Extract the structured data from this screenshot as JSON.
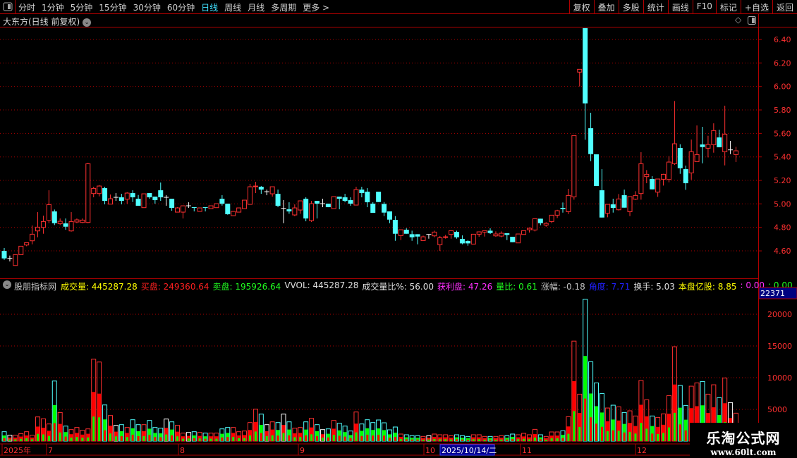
{
  "toolbar": {
    "tabs": [
      "分时",
      "1分钟",
      "5分钟",
      "15分钟",
      "30分钟",
      "60分钟",
      "日线",
      "周线",
      "月线",
      "多周期",
      "更多 >"
    ],
    "active": "日线",
    "right_buttons": [
      "复权",
      "叠加",
      "多股",
      "统计",
      "画线",
      "F10",
      "标记",
      "+自选",
      "返回"
    ]
  },
  "chart_title": "大东方(日线 前复权)",
  "indicator": {
    "name": "股朋指标网",
    "items": [
      {
        "label": "成交量",
        "value": "445287.28",
        "color": "#ffff00"
      },
      {
        "label": "买盘",
        "value": "249360.64",
        "color": "#ff2020"
      },
      {
        "label": "卖盘",
        "value": "195926.64",
        "color": "#20ff20"
      },
      {
        "label": "VVOL",
        "value": "445287.28",
        "color": "#e0e0e0"
      },
      {
        "label": "成交量比%",
        "value": "56.00",
        "color": "#e0e0e0"
      },
      {
        "label": "获利盘",
        "value": "47.26",
        "color": "#ff30ff"
      },
      {
        "label": "量比",
        "value": "0.61",
        "color": "#20ff20"
      },
      {
        "label": "涨幅",
        "value": "-0.18",
        "color": "#c0c0c0"
      },
      {
        "label": "角度",
        "value": "7.71",
        "color": "#2020ff"
      },
      {
        "label": "换手",
        "value": "5.03",
        "color": "#e0e0e0"
      },
      {
        "label": "本盘亿股",
        "value": "8.85",
        "color": "#ffff00"
      },
      {
        "label": "",
        "value": "0.00",
        "color": "#ff30ff"
      },
      {
        "label": "",
        "value": "0.00",
        "color": "#20ff20"
      }
    ]
  },
  "watermark": {
    "name": "乐淘公式网",
    "url": "www.60lt.com"
  },
  "colors": {
    "up": "#ff3030",
    "down": "#50ffff",
    "flat": "#ffffff",
    "grid": "#b00000",
    "buy": "#ff0000",
    "sell": "#00ff00"
  },
  "chart_data": [
    {
      "type": "candlestick",
      "yticks": [
        "6.40",
        "6.20",
        "6.00",
        "5.80",
        "5.60",
        "5.40",
        "5.20",
        "5.00",
        "4.80",
        "4.60"
      ],
      "grid": true,
      "x_labels": [
        "2025年",
        "7",
        "8",
        "9",
        "10",
        "11",
        "12"
      ],
      "cursor_date": "2025/10/14/二",
      "ohlc": [
        [
          4.6,
          4.624,
          4.524,
          4.536
        ],
        [
          4.536,
          4.56,
          4.51,
          4.536
        ],
        [
          4.476,
          4.568,
          4.476,
          4.568
        ],
        [
          4.568,
          4.64,
          4.568,
          4.64
        ],
        [
          4.65,
          4.67,
          4.64,
          4.67
        ],
        [
          4.686,
          4.816,
          4.656,
          4.742
        ],
        [
          4.77,
          4.93,
          4.716,
          4.802
        ],
        [
          4.8,
          4.9,
          4.746,
          4.85
        ],
        [
          4.86,
          5.116,
          4.836,
          4.994
        ],
        [
          4.936,
          4.952,
          4.82,
          4.836
        ],
        [
          4.832,
          4.876,
          4.82,
          4.852
        ],
        [
          4.834,
          4.876,
          4.78,
          4.806
        ],
        [
          4.77,
          4.93,
          4.764,
          4.85
        ],
        [
          4.846,
          4.876,
          4.836,
          4.864
        ],
        [
          4.842,
          4.876,
          4.836,
          4.862
        ],
        [
          4.842,
          5.35,
          4.836,
          5.342
        ],
        [
          5.088,
          5.146,
          5.056,
          5.132
        ],
        [
          5.088,
          5.16,
          5.064,
          5.152
        ],
        [
          5.134,
          5.146,
          4.996,
          5.026
        ],
        [
          4.998,
          5.08,
          4.998,
          5.044
        ],
        [
          5.056,
          5.092,
          5.026,
          5.056
        ],
        [
          5.056,
          5.086,
          4.996,
          5.026
        ],
        [
          5.04,
          5.1,
          5.0,
          5.092
        ],
        [
          5.092,
          5.116,
          5.016,
          5.056
        ],
        [
          5.044,
          5.076,
          4.984,
          4.984
        ],
        [
          4.968,
          5.086,
          4.968,
          5.086
        ],
        [
          5.092,
          5.092,
          5.044,
          5.056
        ],
        [
          5.062,
          5.062,
          5.002,
          5.032
        ],
        [
          5.116,
          5.182,
          5.026,
          5.056
        ],
        [
          5.056,
          5.074,
          4.984,
          5.056
        ],
        [
          5.044,
          5.044,
          4.942,
          4.966
        ],
        [
          4.93,
          4.972,
          4.93,
          4.966
        ],
        [
          4.93,
          4.984,
          4.876,
          4.984
        ],
        [
          4.984,
          5.014,
          4.966,
          4.984
        ],
        [
          4.972,
          4.972,
          4.936,
          4.968
        ],
        [
          4.936,
          4.966,
          4.936,
          4.966
        ],
        [
          4.972,
          4.972,
          4.936,
          4.968
        ],
        [
          4.96,
          4.984,
          4.96,
          4.984
        ],
        [
          4.968,
          5.002,
          4.968,
          5.002
        ],
        [
          5.044,
          5.074,
          4.986,
          5.002
        ],
        [
          5.002,
          5.002,
          4.908,
          4.912
        ],
        [
          4.9,
          4.936,
          4.9,
          4.936
        ],
        [
          4.93,
          4.966,
          4.93,
          4.966
        ],
        [
          4.96,
          5.032,
          4.96,
          5.032
        ],
        [
          4.996,
          5.17,
          4.996,
          5.146
        ],
        [
          5.148,
          5.188,
          5.092,
          5.152
        ],
        [
          5.146,
          5.152,
          5.086,
          5.122
        ],
        [
          5.104,
          5.122,
          5.074,
          5.104
        ],
        [
          5.086,
          5.146,
          5.062,
          5.146
        ],
        [
          5.086,
          5.122,
          4.972,
          4.984
        ],
        [
          4.962,
          5.032,
          4.836,
          4.962
        ],
        [
          4.954,
          5.014,
          4.916,
          4.936
        ],
        [
          4.906,
          4.996,
          4.896,
          4.966
        ],
        [
          4.948,
          5.026,
          4.916,
          5.026
        ],
        [
          5.044,
          5.056,
          4.852,
          4.876
        ],
        [
          4.858,
          5.026,
          4.846,
          5.002
        ],
        [
          5.026,
          5.026,
          4.876,
          5.002
        ],
        [
          5.002,
          5.044,
          4.972,
          5.002
        ],
        [
          5.002,
          5.002,
          4.972,
          4.972
        ],
        [
          4.96,
          5.062,
          4.96,
          5.062
        ],
        [
          5.062,
          5.062,
          4.954,
          5.044
        ],
        [
          5.056,
          5.086,
          5.014,
          5.026
        ],
        [
          5.032,
          5.056,
          4.984,
          5.002
        ],
        [
          4.99,
          5.146,
          4.99,
          5.122
        ],
        [
          5.122,
          5.146,
          5.056,
          5.092
        ],
        [
          5.104,
          5.134,
          4.972,
          5.014
        ],
        [
          5.002,
          5.014,
          4.924,
          4.924
        ],
        [
          5.104,
          5.104,
          5.016,
          5.016
        ],
        [
          5.0,
          5.016,
          4.896,
          4.926
        ],
        [
          4.936,
          4.936,
          4.836,
          4.866
        ],
        [
          4.864,
          4.896,
          4.686,
          4.746
        ],
        [
          4.73,
          4.78,
          4.692,
          4.78
        ],
        [
          4.78,
          4.792,
          4.746,
          4.746
        ],
        [
          4.742,
          4.772,
          4.686,
          4.716
        ],
        [
          4.742,
          4.742,
          4.656,
          4.722
        ],
        [
          4.688,
          4.73,
          4.688,
          4.72
        ],
        [
          4.74,
          4.74,
          4.704,
          4.74
        ],
        [
          4.728,
          4.772,
          4.716,
          4.76
        ],
        [
          4.652,
          4.726,
          4.6,
          4.712
        ],
        [
          4.714,
          4.736,
          4.704,
          4.72
        ],
        [
          4.74,
          4.772,
          4.704,
          4.772
        ],
        [
          4.762,
          4.772,
          4.704,
          4.716
        ],
        [
          4.702,
          4.732,
          4.656,
          4.664
        ],
        [
          4.684,
          4.692,
          4.644,
          4.664
        ],
        [
          4.658,
          4.742,
          4.658,
          4.742
        ],
        [
          4.742,
          4.766,
          4.72,
          4.762
        ],
        [
          4.76,
          4.772,
          4.722,
          4.772
        ],
        [
          4.772,
          4.792,
          4.744,
          4.752
        ],
        [
          4.728,
          4.766,
          4.72,
          4.744
        ],
        [
          4.726,
          4.766,
          4.716,
          4.75
        ],
        [
          4.75,
          4.75,
          4.692,
          4.736
        ],
        [
          4.72,
          4.72,
          4.674,
          4.674
        ],
        [
          4.668,
          4.744,
          4.668,
          4.744
        ],
        [
          4.74,
          4.772,
          4.74,
          4.772
        ],
        [
          4.78,
          4.8,
          4.756,
          4.792
        ],
        [
          4.778,
          4.874,
          4.766,
          4.874
        ],
        [
          4.874,
          4.874,
          4.818,
          4.836
        ],
        [
          4.82,
          4.844,
          4.806,
          4.834
        ],
        [
          4.85,
          4.904,
          4.836,
          4.904
        ],
        [
          4.904,
          4.95,
          4.88,
          4.942
        ],
        [
          4.966,
          5.012,
          4.926,
          4.956
        ],
        [
          4.934,
          5.128,
          4.914,
          5.072
        ],
        [
          5.06,
          5.582,
          5.036,
          5.582
        ],
        [
          6.122,
          6.146,
          6.0,
          6.146
        ],
        [
          6.496,
          6.496,
          5.546,
          5.856
        ],
        [
          5.644,
          5.776,
          5.364,
          5.424
        ],
        [
          5.422,
          5.422,
          5.152,
          5.152
        ],
        [
          5.116,
          5.296,
          4.884,
          4.884
        ],
        [
          4.92,
          4.996,
          4.886,
          4.996
        ],
        [
          4.996,
          5.044,
          4.926,
          4.966
        ],
        [
          4.95,
          5.084,
          4.944,
          5.042
        ],
        [
          5.074,
          5.122,
          4.968,
          4.968
        ],
        [
          4.934,
          5.062,
          4.896,
          5.062
        ],
        [
          5.04,
          5.108,
          5.034,
          5.072
        ],
        [
          5.088,
          5.44,
          5.036,
          5.342
        ],
        [
          5.232,
          5.288,
          5.176,
          5.252
        ],
        [
          5.212,
          5.236,
          5.124,
          5.124
        ],
        [
          5.1,
          5.212,
          5.06,
          5.212
        ],
        [
          5.21,
          5.256,
          5.156,
          5.252
        ],
        [
          5.208,
          5.408,
          5.184,
          5.356
        ],
        [
          5.342,
          5.876,
          5.332,
          5.512
        ],
        [
          5.476,
          5.508,
          5.256,
          5.304
        ],
        [
          5.296,
          5.326,
          5.12,
          5.176
        ],
        [
          5.264,
          5.548,
          5.206,
          5.444
        ],
        [
          5.36,
          5.668,
          5.36,
          5.42
        ],
        [
          5.506,
          5.656,
          5.346,
          5.484
        ],
        [
          5.474,
          5.58,
          5.396,
          5.506
        ],
        [
          5.504,
          5.686,
          5.436,
          5.624
        ],
        [
          5.566,
          5.632,
          5.482,
          5.482
        ],
        [
          5.444,
          5.836,
          5.328,
          5.594
        ],
        [
          5.46,
          5.536,
          5.424,
          5.46
        ],
        [
          5.42,
          5.486,
          5.356,
          5.452
        ]
      ]
    },
    {
      "type": "bar",
      "yticks": [
        "20000",
        "15000",
        "10000",
        "5000"
      ],
      "max_label": "22371",
      "ylim": [
        0,
        22371
      ],
      "values": [
        1480,
        925,
        925,
        1184,
        1480,
        925,
        3811,
        3515,
        2701,
        9472,
        4514,
        2368,
        1813,
        2146,
        1702,
        1924,
        12913,
        12469,
        5698,
        4033,
        2479,
        2590,
        2146,
        3367,
        2590,
        2590,
        3256,
        2146,
        2035,
        3478,
        3034,
        2479,
        1258,
        1369,
        1480,
        1369,
        1258,
        1258,
        1258,
        1924,
        2146,
        2146,
        1480,
        1591,
        2923,
        5032,
        4255,
        2590,
        3034,
        2923,
        4255,
        3034,
        2035,
        2146,
        3034,
        3589,
        2590,
        1813,
        1924,
        3256,
        2812,
        2368,
        1591,
        4588,
        2701,
        3367,
        2923,
        3330,
        2886,
        1776,
        2220,
        1110,
        999,
        851,
        851,
        740,
        851,
        1110,
        999,
        999,
        851,
        999,
        851,
        740,
        999,
        999,
        740,
        740,
        740,
        851,
        851,
        1110,
        999,
        1221,
        999,
        1850,
        999,
        740,
        1443,
        1443,
        1628,
        3848,
        15762,
        7400,
        22371,
        12506,
        9176,
        7511,
        5217,
        5661,
        5402,
        4514,
        4773,
        3959,
        9546,
        6512,
        3959,
        3737,
        4292,
        7178,
        14874,
        8769,
        5624,
        8658,
        9176,
        9398,
        7400,
        8880,
        6845,
        9953,
        6068,
        4403
      ]
    }
  ]
}
